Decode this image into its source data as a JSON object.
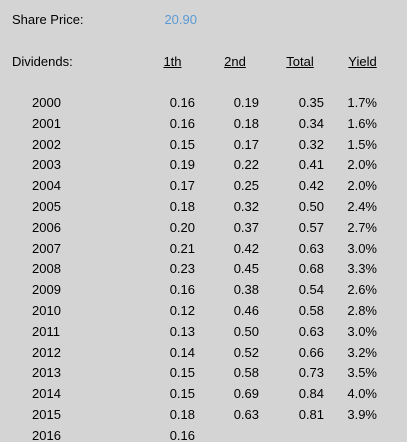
{
  "share_price": {
    "label": "Share Price:",
    "value": "20.90",
    "value_color": "#5b9bd5"
  },
  "dividends_label": "Dividends:",
  "headers": {
    "first": "1th",
    "second": "2nd",
    "total": "Total",
    "yield": "Yield"
  },
  "rows": [
    {
      "year": "2000",
      "first": "0.16",
      "second": "0.19",
      "total": "0.35",
      "yield": "1.7%"
    },
    {
      "year": "2001",
      "first": "0.16",
      "second": "0.18",
      "total": "0.34",
      "yield": "1.6%"
    },
    {
      "year": "2002",
      "first": "0.15",
      "second": "0.17",
      "total": "0.32",
      "yield": "1.5%"
    },
    {
      "year": "2003",
      "first": "0.19",
      "second": "0.22",
      "total": "0.41",
      "yield": "2.0%"
    },
    {
      "year": "2004",
      "first": "0.17",
      "second": "0.25",
      "total": "0.42",
      "yield": "2.0%"
    },
    {
      "year": "2005",
      "first": "0.18",
      "second": "0.32",
      "total": "0.50",
      "yield": "2.4%"
    },
    {
      "year": "2006",
      "first": "0.20",
      "second": "0.37",
      "total": "0.57",
      "yield": "2.7%"
    },
    {
      "year": "2007",
      "first": "0.21",
      "second": "0.42",
      "total": "0.63",
      "yield": "3.0%"
    },
    {
      "year": "2008",
      "first": "0.23",
      "second": "0.45",
      "total": "0.68",
      "yield": "3.3%"
    },
    {
      "year": "2009",
      "first": "0.16",
      "second": "0.38",
      "total": "0.54",
      "yield": "2.6%"
    },
    {
      "year": "2010",
      "first": "0.12",
      "second": "0.46",
      "total": "0.58",
      "yield": "2.8%"
    },
    {
      "year": "2011",
      "first": "0.13",
      "second": "0.50",
      "total": "0.63",
      "yield": "3.0%"
    },
    {
      "year": "2012",
      "first": "0.14",
      "second": "0.52",
      "total": "0.66",
      "yield": "3.2%"
    },
    {
      "year": "2013",
      "first": "0.15",
      "second": "0.58",
      "total": "0.73",
      "yield": "3.5%"
    },
    {
      "year": "2014",
      "first": "0.15",
      "second": "0.69",
      "total": "0.84",
      "yield": "4.0%"
    },
    {
      "year": "2015",
      "first": "0.18",
      "second": "0.63",
      "total": "0.81",
      "yield": "3.9%"
    },
    {
      "year": "2016",
      "first": "0.16",
      "second": "",
      "total": "",
      "yield": ""
    }
  ]
}
